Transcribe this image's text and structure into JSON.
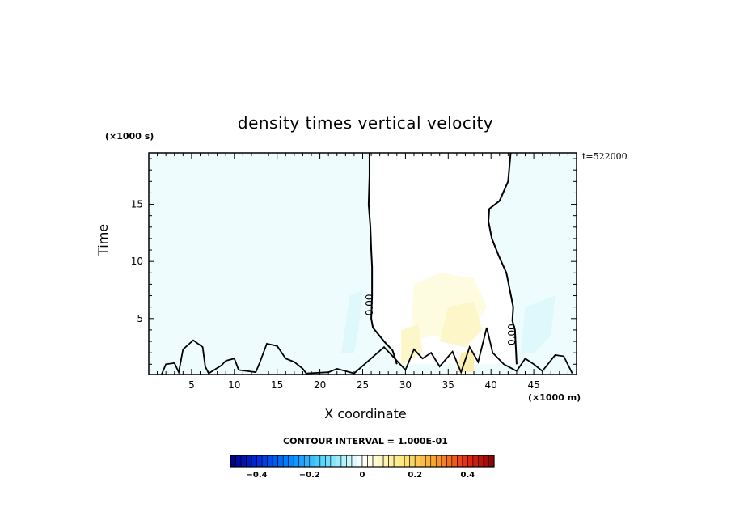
{
  "chart_data": {
    "type": "heatmap",
    "title": "density times vertical velocity",
    "xlabel": "X coordinate",
    "ylabel": "Time",
    "x_unit": "(×1000 m)",
    "y_unit": "(×1000 s)",
    "time_label": "t=522000",
    "xlim": [
      0,
      50
    ],
    "ylim": [
      0.1,
      19.5
    ],
    "x_ticks": [
      "5",
      "10",
      "15",
      "20",
      "25",
      "30",
      "35",
      "40",
      "45"
    ],
    "y_ticks": [
      "5",
      "10",
      "15"
    ],
    "contour_labels": [
      "0.00",
      "0.00"
    ],
    "zero_contours": [
      [
        [
          25.8,
          19.5
        ],
        [
          25.8,
          17.5
        ],
        [
          25.7,
          15.0
        ],
        [
          25.9,
          13.0
        ],
        [
          26.0,
          11.0
        ],
        [
          26.1,
          9.5
        ],
        [
          26.1,
          7.0
        ],
        [
          26.0,
          5.0
        ],
        [
          26.2,
          4.2
        ],
        [
          27.5,
          3.0
        ],
        [
          28.5,
          2.2
        ],
        [
          29.0,
          1.0
        ]
      ],
      [
        [
          42.3,
          19.5
        ],
        [
          42.0,
          17.0
        ],
        [
          41.0,
          15.3
        ],
        [
          39.8,
          14.6
        ],
        [
          39.7,
          13.5
        ],
        [
          40.1,
          12.0
        ],
        [
          40.9,
          10.5
        ],
        [
          41.8,
          9.0
        ],
        [
          42.2,
          7.5
        ],
        [
          42.6,
          6.0
        ],
        [
          42.5,
          4.8
        ],
        [
          42.8,
          4.0
        ],
        [
          43.0,
          1.0
        ]
      ]
    ],
    "colorbar": {
      "contour_interval": "CONTOUR INTERVAL = 1.000E-01",
      "range": [
        -0.5,
        0.5
      ],
      "tick_labels": [
        "−0.4",
        "−0.2",
        "0",
        "0.2",
        "0.4"
      ],
      "tick_values": [
        -0.4,
        -0.2,
        0,
        0.2,
        0.4
      ]
    }
  }
}
